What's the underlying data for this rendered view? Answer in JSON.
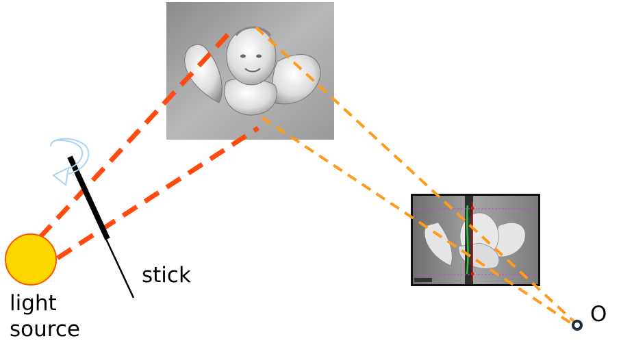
{
  "labels": {
    "light_source_line1": "light",
    "light_source_line2": "source",
    "stick": "stick",
    "observer": "O"
  },
  "colors": {
    "light_source_fill": "#FFD700",
    "light_source_stroke": "#FF5500",
    "incident_rays": "#FF4A10",
    "reflected_rays": "#FF9A1A",
    "stick": "#000000",
    "rotation_arrow": "#A9D4F2",
    "observer_ring": "#1a2b3a"
  },
  "icons": {
    "rotation": "rotate-arrow-icon",
    "light_source": "sun-disc-icon",
    "observer": "eye-point-icon"
  }
}
